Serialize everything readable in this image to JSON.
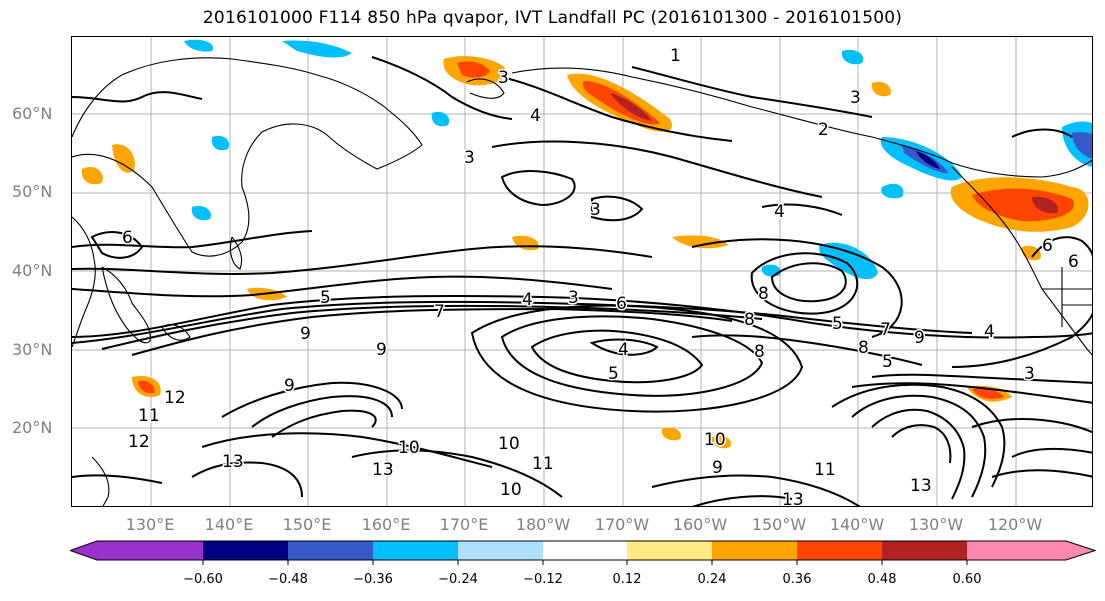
{
  "title": "2016101000 F114 850 hPa qvapor, IVT Landfall PC (2016101300 - 2016101500)",
  "lat_labels": [
    "60°N",
    "50°N",
    "40°N",
    "30°N",
    "20°N"
  ],
  "lon_labels": [
    "130°E",
    "140°E",
    "150°E",
    "160°E",
    "170°E",
    "180°W",
    "170°W",
    "160°W",
    "150°W",
    "140°W",
    "130°W",
    "120°W"
  ],
  "colorbar": {
    "colors": [
      "#9932cc",
      "#000080",
      "#3658c8",
      "#00bfff",
      "#afe1ff",
      "#ffffff",
      "#ffeb82",
      "#ffa500",
      "#ff4500",
      "#b22222",
      "#ff88b0"
    ],
    "tick_labels": [
      "−0.60",
      "−0.48",
      "−0.36",
      "−0.24",
      "−0.12",
      "0.12",
      "0.24",
      "0.36",
      "0.48",
      "0.60"
    ]
  },
  "contour_labels": [
    "1",
    "3",
    "4",
    "3",
    "3",
    "2",
    "3",
    "4",
    "6",
    "6",
    "8",
    "5",
    "7",
    "4",
    "3",
    "6",
    "5",
    "9",
    "9",
    "9",
    "4",
    "5",
    "8",
    "5",
    "8",
    "9",
    "7",
    "4",
    "3",
    "12",
    "11",
    "12",
    "13",
    "13",
    "10",
    "10",
    "11",
    "10",
    "10",
    "9",
    "11",
    "13",
    "13",
    "6",
    "8"
  ]
}
